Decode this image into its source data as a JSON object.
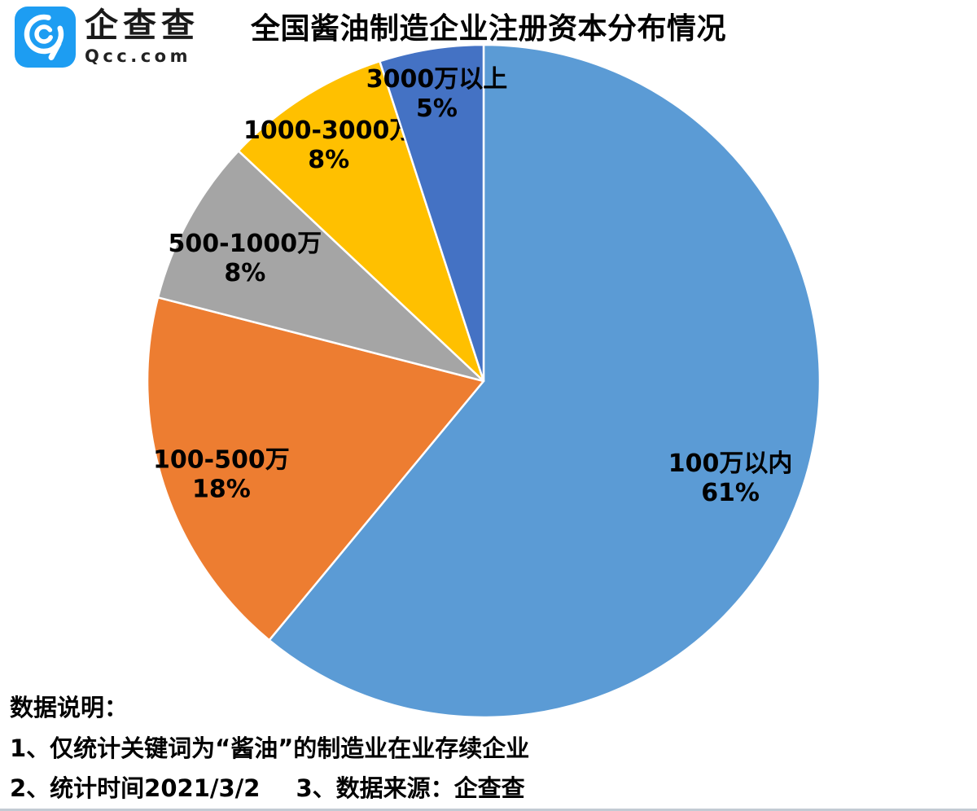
{
  "brand": {
    "name": "企查查",
    "domain": "Qcc.com",
    "icon": "qcc-magnifier-icon",
    "icon_bg": "#1D9DF2",
    "icon_glyph_color": "#FFFFFF"
  },
  "chart_data": {
    "type": "pie",
    "title": "全国酱油制造企业注册资本分布情况",
    "unit": "%",
    "slices": [
      {
        "label": "100万以内",
        "value": 61,
        "color": "#5B9BD5"
      },
      {
        "label": "100-500万",
        "value": 18,
        "color": "#ED7D31"
      },
      {
        "label": "500-1000万",
        "value": 8,
        "color": "#A5A5A5"
      },
      {
        "label": "1000-3000万",
        "value": 8,
        "color": "#FFC000"
      },
      {
        "label": "3000万以上",
        "value": 5,
        "color": "#4472C4"
      }
    ],
    "slice_border_color": "#FFFFFF",
    "label_text_color": "#000000",
    "layout": {
      "start_angle_deg": 0,
      "direction": "clockwise",
      "labels_inside": true,
      "legend": "none",
      "label_radius_fractions": [
        0.78,
        0.82,
        0.81,
        0.86,
        0.89
      ]
    }
  },
  "footer": {
    "heading": "数据说明：",
    "note1": "1、仅统计关键词为“酱油”的制造业在业存续企业",
    "note2": "2、统计时间2021/3/2",
    "note3": "3、数据来源：企查查"
  }
}
